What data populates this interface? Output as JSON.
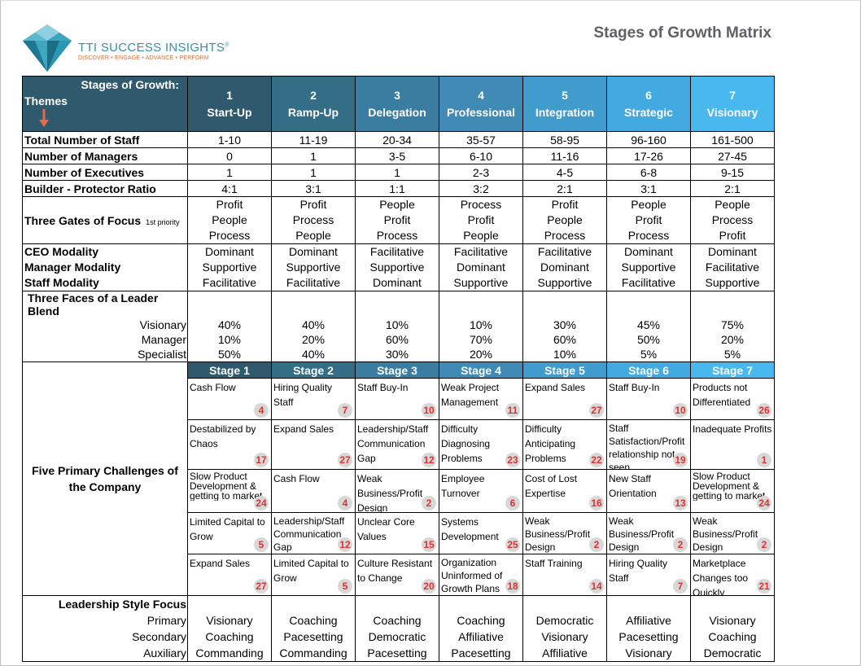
{
  "brand": {
    "name": "TTI SUCCESS INSIGHTS",
    "reg": "®",
    "tagline": "DISCOVER • ENGAGE • ADVANCE • PERFORM",
    "icon": "diamond-logo-icon"
  },
  "title": "Stages of Growth Matrix",
  "header": {
    "stages_label": "Stages of Growth:",
    "themes_label": "Themes",
    "arrow_icon": "down-arrow-icon"
  },
  "colors": {
    "stage_headers": [
      "#2f5a6e",
      "#336d86",
      "#3a7da0",
      "#3f8bb6",
      "#3f9ccc",
      "#42aae0",
      "#48b8ef"
    ],
    "badge_text": "#e3302f",
    "badge_bg": "#d8d8d8"
  },
  "stages": [
    {
      "num": "1",
      "name": "Start-Up"
    },
    {
      "num": "2",
      "name": "Ramp-Up"
    },
    {
      "num": "3",
      "name": "Delegation"
    },
    {
      "num": "4",
      "name": "Professional"
    },
    {
      "num": "5",
      "name": "Integration"
    },
    {
      "num": "6",
      "name": "Strategic"
    },
    {
      "num": "7",
      "name": "Visionary"
    }
  ],
  "rows": {
    "staff": {
      "label": "Total Number of Staff",
      "values": [
        "1-10",
        "11-19",
        "20-34",
        "35-57",
        "58-95",
        "96-160",
        "161-500"
      ]
    },
    "managers": {
      "label": "Number of Managers",
      "values": [
        "0",
        "1",
        "3-5",
        "6-10",
        "11-16",
        "17-26",
        "27-45"
      ]
    },
    "executives": {
      "label": "Number of Executives",
      "values": [
        "1",
        "1",
        "1",
        "2-3",
        "4-5",
        "6-8",
        "9-15"
      ]
    },
    "ratio": {
      "label": "Builder - Protector Ratio",
      "values": [
        "4:1",
        "3:1",
        "1:1",
        "3:2",
        "2:1",
        "3:1",
        "2:1"
      ]
    }
  },
  "gates": {
    "label": "Three Gates of Focus",
    "note": "1st priority",
    "values": [
      [
        "Profit",
        "People",
        "Process"
      ],
      [
        "Profit",
        "Process",
        "People"
      ],
      [
        "People",
        "Profit",
        "Process"
      ],
      [
        "Process",
        "Profit",
        "People"
      ],
      [
        "Profit",
        "People",
        "Process"
      ],
      [
        "People",
        "Profit",
        "Process"
      ],
      [
        "People",
        "Process",
        "Profit"
      ]
    ]
  },
  "modality": {
    "labels": [
      "CEO Modality",
      "Manager Modality",
      "Staff Modality"
    ],
    "values": [
      [
        "Dominant",
        "Supportive",
        "Facilitative"
      ],
      [
        "Dominant",
        "Supportive",
        "Facilitative"
      ],
      [
        "Facilitative",
        "Supportive",
        "Dominant"
      ],
      [
        "Facilitative",
        "Dominant",
        "Supportive"
      ],
      [
        "Facilitative",
        "Dominant",
        "Supportive"
      ],
      [
        "Dominant",
        "Supportive",
        "Facilitative"
      ],
      [
        "Dominant",
        "Facilitative",
        "Supportive"
      ]
    ]
  },
  "blend": {
    "title": "Three Faces of a Leader Blend",
    "labels": [
      "Visionary",
      "Manager",
      "Specialist"
    ],
    "values": [
      [
        "40%",
        "10%",
        "50%"
      ],
      [
        "40%",
        "20%",
        "40%"
      ],
      [
        "10%",
        "60%",
        "30%"
      ],
      [
        "10%",
        "70%",
        "20%"
      ],
      [
        "30%",
        "60%",
        "10%"
      ],
      [
        "45%",
        "50%",
        "5%"
      ],
      [
        "75%",
        "20%",
        "5%"
      ]
    ]
  },
  "challenges": {
    "label": "Five Primary Challenges of the Company",
    "stage_band": [
      "Stage 1",
      "Stage 2",
      "Stage 3",
      "Stage 4",
      "Stage 5",
      "Stage 6",
      "Stage 7"
    ],
    "rows": [
      [
        {
          "text": "Cash Flow",
          "num": "4"
        },
        {
          "text": "Hiring Quality Staff",
          "num": "7"
        },
        {
          "text": "Staff Buy-In",
          "num": "10"
        },
        {
          "text": "Weak Project Management",
          "num": "11"
        },
        {
          "text": "Expand Sales",
          "num": "27"
        },
        {
          "text": "Staff Buy-In",
          "num": "10"
        },
        {
          "text": "Products not Differentiated",
          "num": "26"
        }
      ],
      [
        {
          "text": "Destabilized by Chaos",
          "num": "17"
        },
        {
          "text": "Expand Sales",
          "num": "27"
        },
        {
          "text": "Leadership/Staff Communication Gap",
          "num": "12"
        },
        {
          "text": "Difficulty Diagnosing Problems",
          "num": "23"
        },
        {
          "text": "Difficulty Anticipating Problems",
          "num": "22"
        },
        {
          "text": "Staff Satisfaction/Profit relationship not seen",
          "num": "19",
          "small": "mid"
        },
        {
          "text": "Inadequate Profits",
          "num": "1"
        }
      ],
      [
        {
          "text": "Slow Product Development & getting to market",
          "num": "24",
          "small": "yes"
        },
        {
          "text": "Cash Flow",
          "num": "4"
        },
        {
          "text": "Weak Business/Profit Design",
          "num": "2"
        },
        {
          "text": "Employee Turnover",
          "num": "6"
        },
        {
          "text": "Cost of Lost Expertise",
          "num": "16"
        },
        {
          "text": "New Staff Orientation",
          "num": "13"
        },
        {
          "text": "Slow Product Development & getting to market",
          "num": "24",
          "small": "yes"
        }
      ],
      [
        {
          "text": "Limited Capital to Grow",
          "num": "5"
        },
        {
          "text": "Leadership/Staff Communication Gap",
          "num": "12",
          "small": "mid"
        },
        {
          "text": "Unclear Core Values",
          "num": "15"
        },
        {
          "text": "Systems Development",
          "num": "25"
        },
        {
          "text": "Weak Business/Profit Design",
          "num": "2",
          "small": "mid"
        },
        {
          "text": "Weak Business/Profit Design",
          "num": "2",
          "small": "mid"
        },
        {
          "text": "Weak Business/Profit Design",
          "num": "2",
          "small": "mid"
        }
      ],
      [
        {
          "text": "Expand Sales",
          "num": "27"
        },
        {
          "text": "Limited Capital to Grow",
          "num": "5"
        },
        {
          "text": "Culture Resistant to Change",
          "num": "20"
        },
        {
          "text": "Organization Uninformed of Growth Plans",
          "num": "18",
          "small": "mid"
        },
        {
          "text": "Staff Training",
          "num": "14"
        },
        {
          "text": "Hiring Quality Staff",
          "num": "7"
        },
        {
          "text": "Marketplace Changes too Quickly",
          "num": "21"
        }
      ]
    ]
  },
  "leadership": {
    "title": "Leadership Style Focus",
    "labels": [
      "Primary",
      "Secondary",
      "Auxiliary"
    ],
    "values": [
      [
        "Visionary",
        "Coaching",
        "Commanding"
      ],
      [
        "Coaching",
        "Pacesetting",
        "Commanding"
      ],
      [
        "Coaching",
        "Democratic",
        "Pacesetting"
      ],
      [
        "Coaching",
        "Affiliative",
        "Pacesetting"
      ],
      [
        "Democratic",
        "Visionary",
        "Affiliative"
      ],
      [
        "Affiliative",
        "Pacesetting",
        "Visionary"
      ],
      [
        "Visionary",
        "Coaching",
        "Democratic"
      ]
    ]
  }
}
